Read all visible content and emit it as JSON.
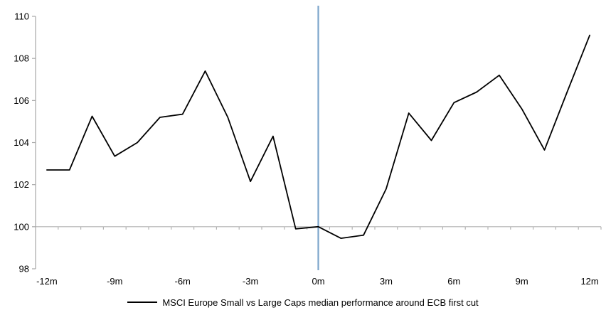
{
  "chart_data": {
    "type": "line",
    "title": "",
    "xlabel": "",
    "ylabel": "",
    "x": [
      -12,
      -11,
      -10,
      -9,
      -8,
      -7,
      -6,
      -5,
      -4,
      -3,
      -2,
      -1,
      0,
      1,
      2,
      3,
      4,
      5,
      6,
      7,
      8,
      9,
      10,
      11,
      12
    ],
    "series": [
      {
        "name": "MSCI Europe Small vs Large Caps median performance around ECB first cut",
        "color": "#000000",
        "values": [
          102.7,
          102.7,
          105.25,
          103.35,
          104.0,
          105.2,
          105.35,
          107.4,
          105.2,
          102.15,
          104.3,
          99.9,
          100.0,
          99.45,
          99.6,
          101.8,
          105.4,
          104.1,
          105.9,
          106.4,
          107.2,
          105.6,
          103.65,
          106.4,
          109.1
        ]
      }
    ],
    "ylim": [
      98,
      110
    ],
    "ytick_step": 2,
    "ytick_labels": [
      "98",
      "100",
      "102",
      "104",
      "106",
      "108",
      "110"
    ],
    "xticks": [
      {
        "x": -12,
        "label": "-12m"
      },
      {
        "x": -9,
        "label": "-9m"
      },
      {
        "x": -6,
        "label": "-6m"
      },
      {
        "x": -3,
        "label": "-3m"
      },
      {
        "x": 0,
        "label": "0m"
      },
      {
        "x": 3,
        "label": "3m"
      },
      {
        "x": 6,
        "label": "6m"
      },
      {
        "x": 9,
        "label": "9m"
      },
      {
        "x": 12,
        "label": "12m"
      }
    ],
    "baseline_value": 100,
    "event_line": {
      "x": 0,
      "color": "#7da5cb"
    },
    "grid": "baseline-only",
    "legend_position": "bottom-center",
    "colors": {
      "series_line": "#000000",
      "event_line": "#7da5cb",
      "axis": "#a6a6a6",
      "baseline": "#b3b3b3",
      "text": "#000000",
      "background": "#ffffff"
    }
  }
}
